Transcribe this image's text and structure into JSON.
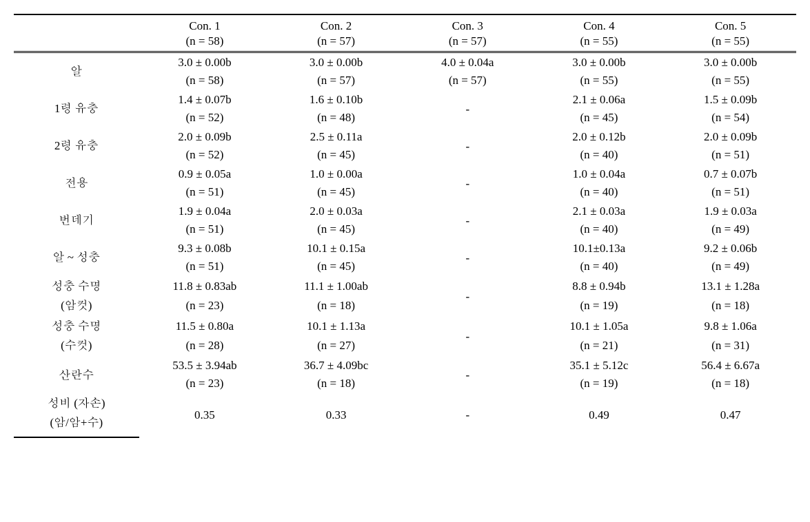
{
  "table": {
    "columns": [
      "Con. 1",
      "Con. 2",
      "Con. 3",
      "Con. 4",
      "Con. 5"
    ],
    "header_n": [
      "(n = 58)",
      "(n = 57)",
      "(n = 57)",
      "(n = 55)",
      "(n = 55)"
    ],
    "rows": [
      {
        "label": "알",
        "values": [
          "3.0 ± 0.00b",
          "3.0 ± 0.00b",
          "4.0 ± 0.04a",
          "3.0 ± 0.00b",
          "3.0 ± 0.00b"
        ],
        "n": [
          "(n = 58)",
          "(n = 57)",
          "(n = 57)",
          "(n = 55)",
          "(n = 55)"
        ]
      },
      {
        "label": "1령 유충",
        "values": [
          "1.4 ± 0.07b",
          "1.6 ± 0.10b",
          "-",
          "2.1 ± 0.06a",
          "1.5 ± 0.09b"
        ],
        "n": [
          "(n = 52)",
          "(n = 48)",
          "",
          "(n = 45)",
          "(n = 54)"
        ]
      },
      {
        "label": "2령 유충",
        "values": [
          "2.0 ± 0.09b",
          "2.5 ± 0.11a",
          "-",
          "2.0 ± 0.12b",
          "2.0 ± 0.09b"
        ],
        "n": [
          "(n = 52)",
          "(n = 45)",
          "",
          "(n = 40)",
          "(n = 51)"
        ]
      },
      {
        "label": "전용",
        "values": [
          "0.9 ± 0.05a",
          "1.0 ± 0.00a",
          "-",
          "1.0 ± 0.04a",
          "0.7 ± 0.07b"
        ],
        "n": [
          "(n = 51)",
          "(n = 45)",
          "",
          "(n = 40)",
          "(n = 51)"
        ]
      },
      {
        "label": "번데기",
        "values": [
          "1.9 ± 0.04a",
          "2.0 ± 0.03a",
          "-",
          "2.1 ± 0.03a",
          "1.9 ± 0.03a"
        ],
        "n": [
          "(n = 51)",
          "(n = 45)",
          "",
          "(n = 40)",
          "(n = 49)"
        ]
      },
      {
        "label": "알 ~ 성충",
        "values": [
          "9.3 ± 0.08b",
          "10.1 ± 0.15a",
          "-",
          "10.1±0.13a",
          "9.2 ± 0.06b"
        ],
        "n": [
          "(n = 51)",
          "(n = 45)",
          "",
          "(n = 40)",
          "(n = 49)"
        ]
      },
      {
        "label": "성충 수명",
        "label2": "(암컷)",
        "values": [
          "11.8 ± 0.83ab",
          "11.1 ± 1.00ab",
          "-",
          "8.8 ± 0.94b",
          "13.1 ± 1.28a"
        ],
        "n": [
          "(n = 23)",
          "(n = 18)",
          "",
          "(n = 19)",
          "(n = 18)"
        ]
      },
      {
        "label": "성충 수명",
        "label2": "(수컷)",
        "values": [
          "11.5 ± 0.80a",
          "10.1 ± 1.13a",
          "-",
          "10.1 ± 1.05a",
          "9.8 ± 1.06a"
        ],
        "n": [
          "(n = 28)",
          "(n = 27)",
          "",
          "(n = 21)",
          "(n = 31)"
        ]
      },
      {
        "label": "산란수",
        "values": [
          "53.5 ± 3.94ab",
          "36.7 ± 4.09bc",
          "-",
          "35.1 ± 5.12c",
          "56.4 ± 6.67a"
        ],
        "n": [
          "(n = 23)",
          "(n = 18)",
          "",
          "(n = 19)",
          "(n = 18)"
        ]
      },
      {
        "label": "성비 (자손)",
        "label2": "(암/암+수)",
        "values": [
          "0.35",
          "0.33",
          "-",
          "0.49",
          "0.47"
        ],
        "single": true
      }
    ],
    "font_size": 17,
    "text_color": "#000000",
    "background_color": "#ffffff",
    "border_color": "#000000"
  }
}
